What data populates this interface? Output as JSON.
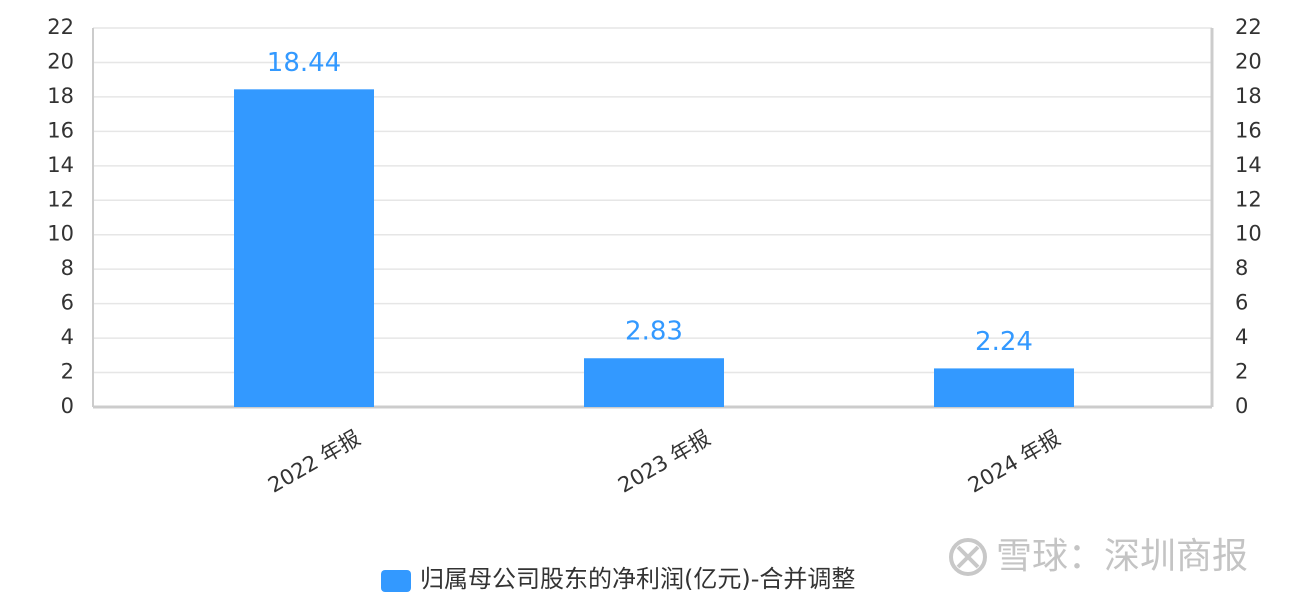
{
  "chart_data": {
    "type": "bar",
    "categories": [
      "2022 年报",
      "2023 年报",
      "2024 年报"
    ],
    "series": [
      {
        "name": "归属母公司股东的净利润(亿元)-合并调整",
        "color": "#3399ff",
        "values": [
          18.44,
          2.83,
          2.24
        ]
      }
    ],
    "ylim": [
      0,
      22
    ],
    "yticks": [
      0,
      2,
      4,
      6,
      8,
      10,
      12,
      14,
      16,
      18,
      20,
      22
    ],
    "y2lim": [
      0,
      22
    ],
    "y2ticks": [
      0,
      2,
      4,
      6,
      8,
      10,
      12,
      14,
      16,
      18,
      20,
      22
    ],
    "grid": true,
    "legend": "bottom",
    "watermark": "雪球：深圳商报"
  }
}
